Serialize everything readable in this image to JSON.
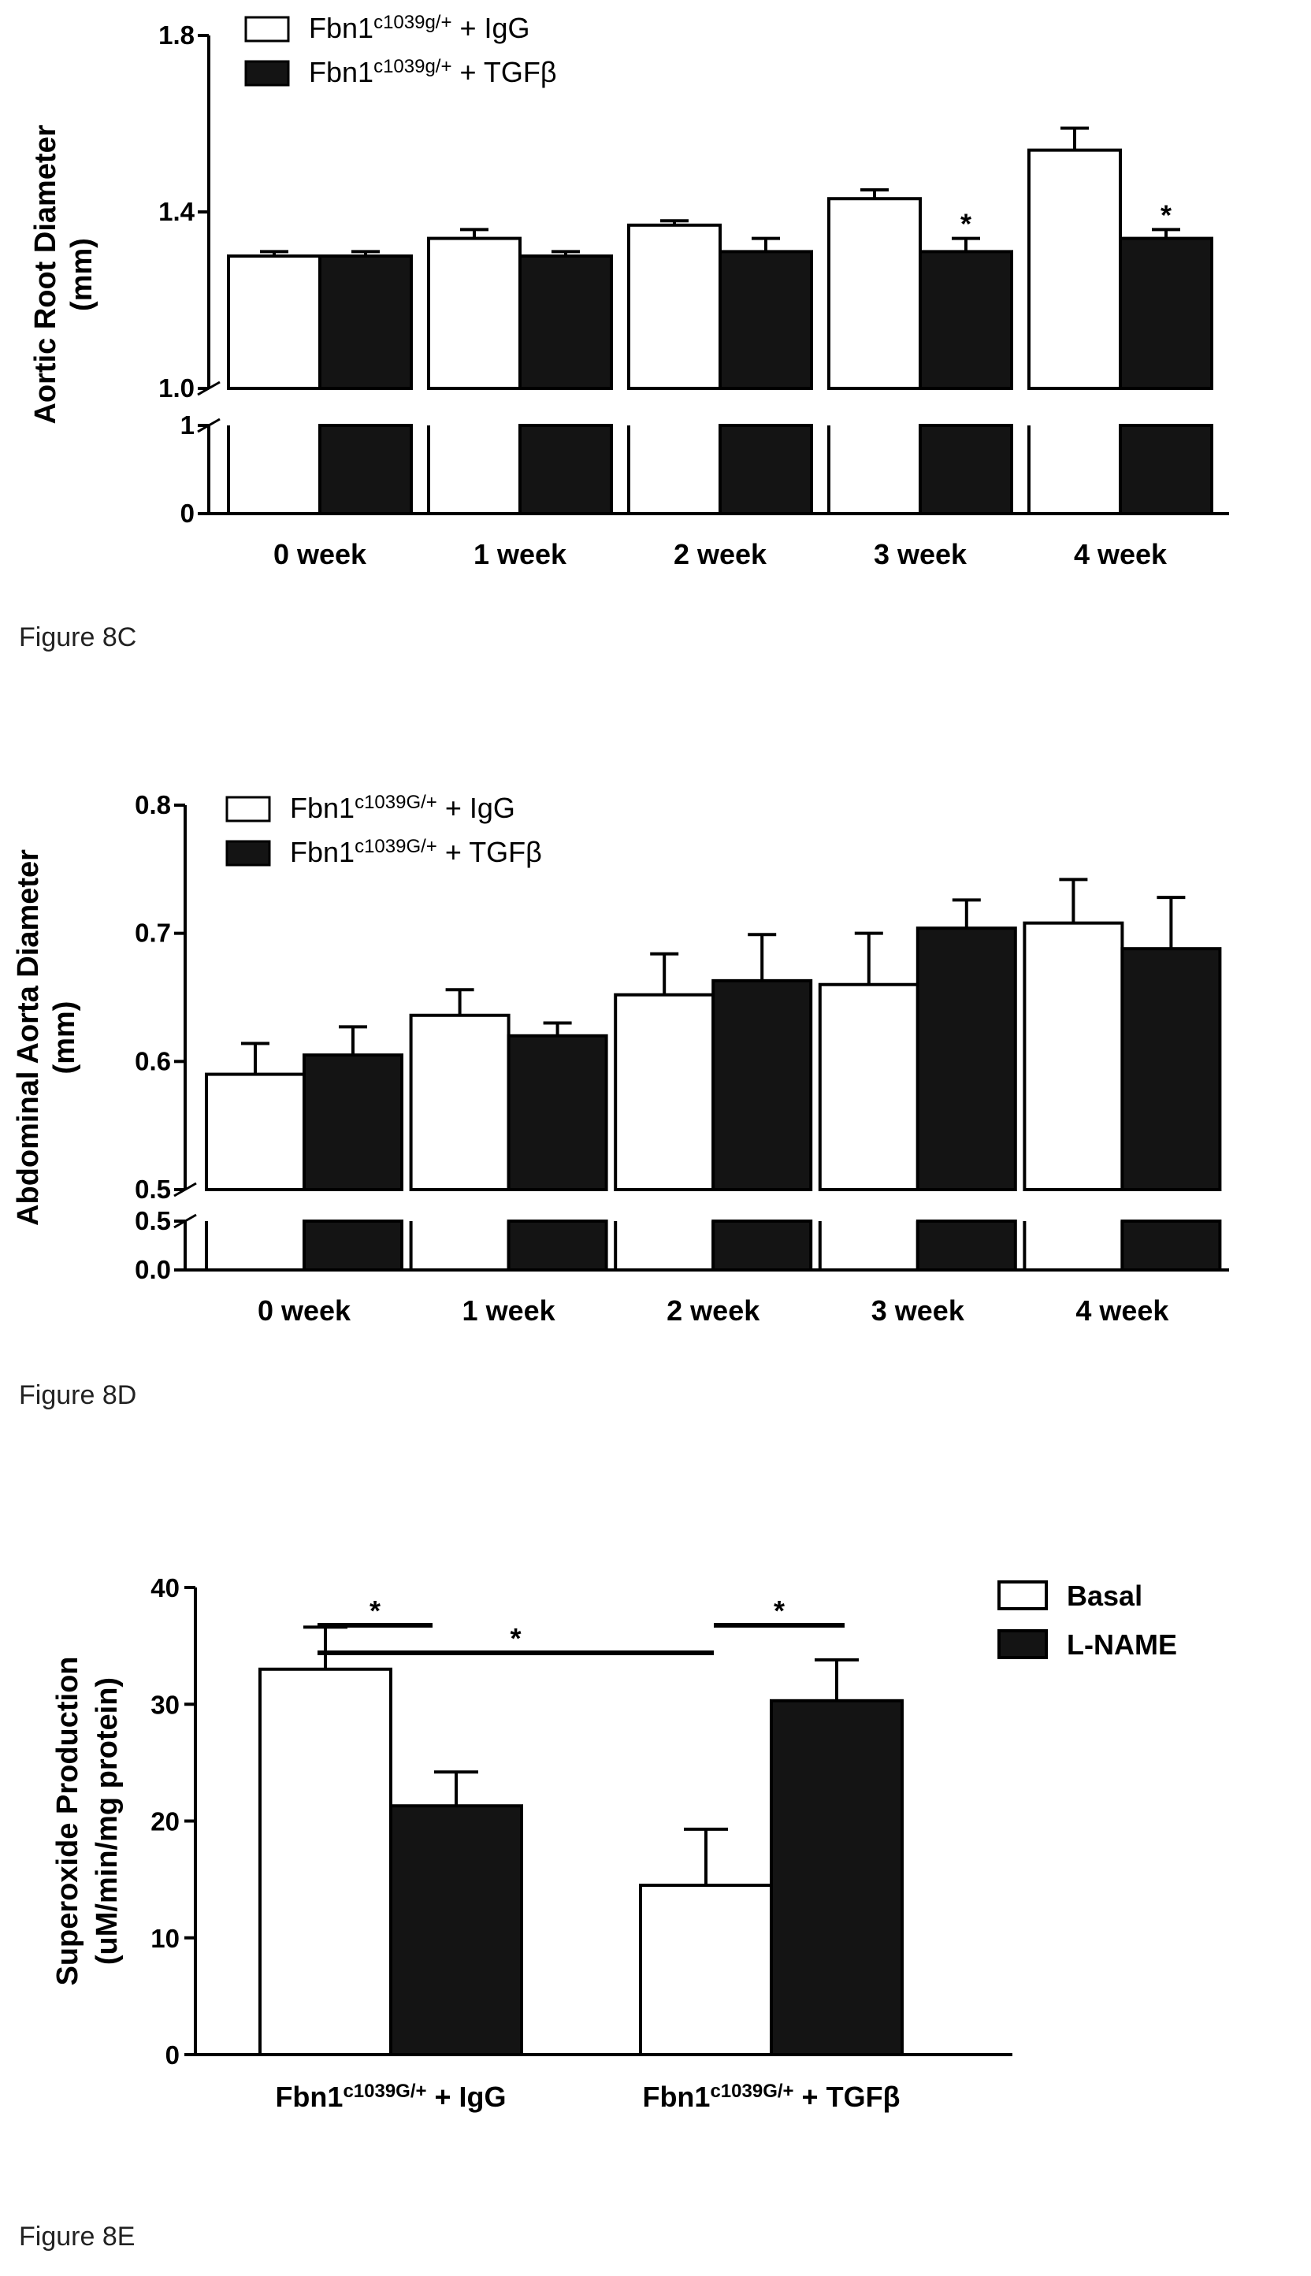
{
  "figures": [
    {
      "caption": "Figure 8C"
    },
    {
      "caption": "Figure 8D"
    },
    {
      "caption": "Figure 8E"
    }
  ],
  "colors": {
    "basal_fill": "#ffffff",
    "treated_fill": "#141414",
    "axis": "#000000"
  },
  "chart_data": [
    {
      "type": "bar",
      "title": "",
      "xlabel": "",
      "ylabel": "Aortic Root Diameter (mm)",
      "broken_axis": true,
      "ylim_lower": [
        0,
        1
      ],
      "ylim_upper": [
        1.0,
        1.8
      ],
      "yticks_lower": [
        "0",
        "1"
      ],
      "yticks_upper": [
        "1.0",
        "1.4",
        "1.8"
      ],
      "categories": [
        "0 week",
        "1 week",
        "2 week",
        "3 week",
        "4 week"
      ],
      "series": [
        {
          "name": "Fbn1",
          "name_sup": "c1039g/+",
          "name_suffix": " + IgG",
          "fill": "white",
          "values": [
            1.3,
            1.34,
            1.37,
            1.43,
            1.54
          ],
          "errors": [
            0.01,
            0.02,
            0.01,
            0.02,
            0.05
          ],
          "markers": [
            "",
            "",
            "",
            "",
            ""
          ]
        },
        {
          "name": "Fbn1",
          "name_sup": "c1039g/+",
          "name_suffix": " + TGFβ",
          "fill": "black",
          "values": [
            1.3,
            1.3,
            1.31,
            1.31,
            1.34
          ],
          "errors": [
            0.01,
            0.01,
            0.03,
            0.03,
            0.02
          ],
          "markers": [
            "",
            "",
            "",
            "*",
            "*"
          ]
        }
      ]
    },
    {
      "type": "bar",
      "title": "",
      "xlabel": "",
      "ylabel": "Abdominal Aorta Diameter (mm)",
      "broken_axis": true,
      "ylim_lower": [
        0.0,
        0.5
      ],
      "ylim_upper": [
        0.5,
        0.8
      ],
      "yticks_lower": [
        "0.0",
        "0.5"
      ],
      "yticks_upper": [
        "0.5",
        "0.6",
        "0.7",
        "0.8"
      ],
      "categories": [
        "0 week",
        "1 week",
        "2 week",
        "3 week",
        "4 week"
      ],
      "series": [
        {
          "name": "Fbn1",
          "name_sup": "c1039G/+",
          "name_suffix": " + IgG",
          "fill": "white",
          "values": [
            0.59,
            0.636,
            0.652,
            0.66,
            0.708
          ],
          "errors": [
            0.024,
            0.02,
            0.032,
            0.04,
            0.034
          ],
          "markers": [
            "",
            "",
            "",
            "",
            ""
          ]
        },
        {
          "name": "Fbn1",
          "name_sup": "c1039G/+",
          "name_suffix": " + TGFβ",
          "fill": "black",
          "values": [
            0.605,
            0.62,
            0.663,
            0.704,
            0.688
          ],
          "errors": [
            0.022,
            0.01,
            0.036,
            0.022,
            0.04
          ],
          "markers": [
            "",
            "",
            "",
            "",
            ""
          ]
        }
      ]
    },
    {
      "type": "bar",
      "title": "",
      "xlabel": "",
      "ylabel": "Superoxide Production (uM/min/mg protein)",
      "ylim": [
        0,
        40
      ],
      "yticks": [
        "0",
        "10",
        "20",
        "30",
        "40"
      ],
      "categories": [
        {
          "name": "Fbn1",
          "sup": "c1039G/+",
          "suffix": " + IgG"
        },
        {
          "name": "Fbn1",
          "sup": "c1039G/+",
          "suffix": " + TGFβ"
        }
      ],
      "series": [
        {
          "name": "Basal",
          "fill": "white",
          "values": [
            33.0,
            14.5
          ],
          "errors": [
            3.6,
            4.8
          ]
        },
        {
          "name": "L-NAME",
          "fill": "black",
          "values": [
            21.3,
            30.3
          ],
          "errors": [
            2.9,
            3.5
          ]
        }
      ],
      "significance": [
        {
          "label": "*",
          "between": "IgG Basal vs IgG L-NAME"
        },
        {
          "label": "*",
          "between": "IgG Basal vs TGFβ Basal"
        },
        {
          "label": "*",
          "between": "TGFβ Basal vs TGFβ L-NAME"
        }
      ]
    }
  ]
}
